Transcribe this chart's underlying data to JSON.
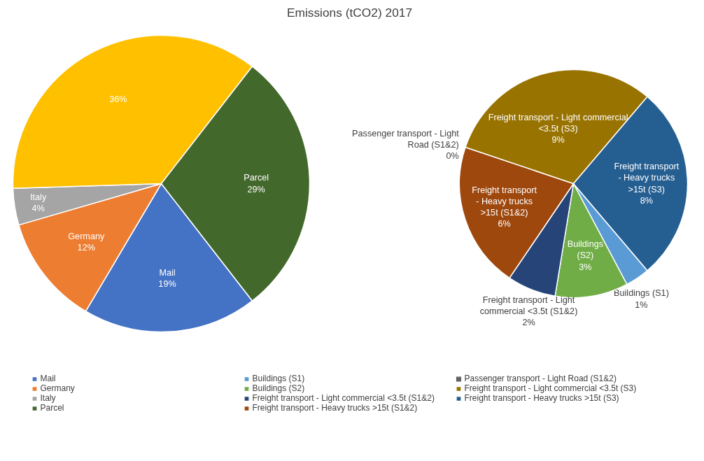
{
  "chart_data": [
    {
      "type": "pie",
      "title": "Emissions (tCO2) 2017",
      "legend": "bottom",
      "categories": [
        "Mail",
        "Germany",
        "Italy",
        null,
        "Parcel"
      ],
      "values": [
        19,
        12,
        4,
        36,
        29
      ],
      "value_labels": [
        "19%",
        "12%",
        "4%",
        "36%",
        "29%"
      ],
      "colors": [
        "#4472c4",
        "#ed7d31",
        "#a5a5a5",
        "#ffc000",
        "#43682b"
      ]
    },
    {
      "type": "pie",
      "legend": "bottom",
      "categories": [
        "Buildings (S1)",
        "Buildings (S2)",
        "Freight transport - Light commercial <3.5t (S1&2)",
        "Freight transport - Heavy trucks >15t (S1&2)",
        "Passenger transport - Light Road (S1&2)",
        "Freight transport - Light commercial <3.5t (S3)",
        "Freight transport - Heavy trucks >15t (S3)"
      ],
      "values": [
        1,
        3,
        2,
        6,
        0,
        9,
        8
      ],
      "value_labels": [
        "1%",
        "3%",
        "2%",
        "6%",
        "0%",
        "9%",
        "8%"
      ],
      "colors": [
        "#5b9bd5",
        "#70ad47",
        "#264478",
        "#9e480e",
        "#636363",
        "#997300",
        "#255e91"
      ]
    }
  ]
}
